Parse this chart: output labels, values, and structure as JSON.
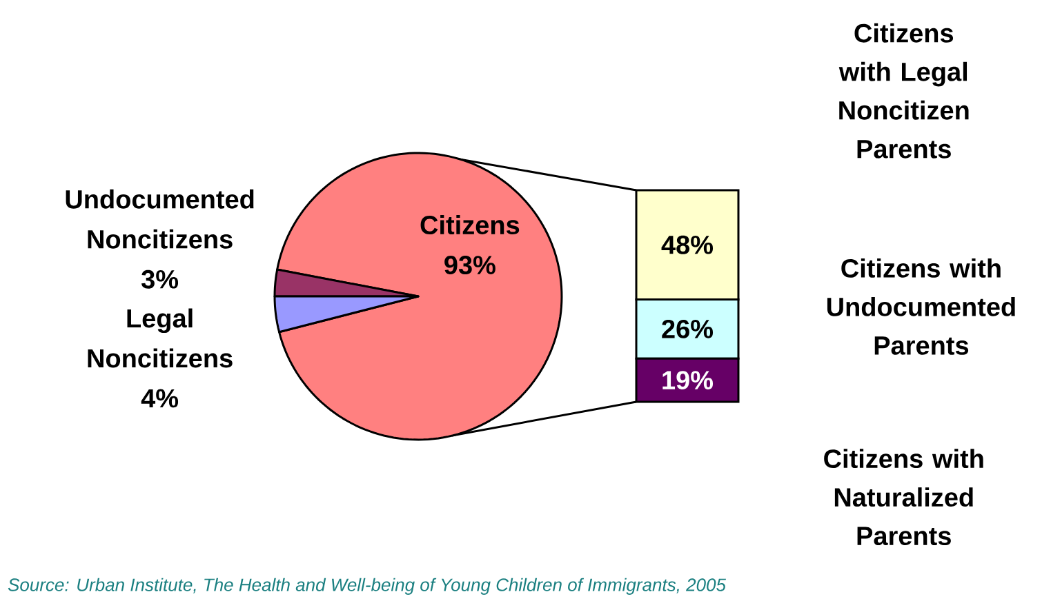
{
  "chart_data": [
    {
      "type": "pie",
      "categories": [
        "Citizens",
        "Undocumented Noncitizens",
        "Legal Noncitizens"
      ],
      "values": [
        93,
        3,
        4
      ],
      "colors": [
        "#ff8080",
        "#993366",
        "#9999ff"
      ],
      "value_labels": [
        "93%",
        "3%",
        "4%"
      ],
      "annotations": [
        "Source: Urban Institute, The Health and Well-being of Young Children of Immigrants, 2005"
      ]
    },
    {
      "type": "bar",
      "stacked": true,
      "categories": [
        null
      ],
      "series": [
        {
          "name": "Citizens with Naturalized Parents",
          "color": "#660066",
          "values": [
            19
          ],
          "value_labels": [
            "19%"
          ]
        },
        {
          "name": "Citizens with Undocumented Parents",
          "color": "#ccffff",
          "values": [
            26
          ],
          "value_labels": [
            "26%"
          ]
        },
        {
          "name": "Citizens with Legal Noncitizen Parents",
          "color": "#ffffcc",
          "values": [
            48
          ],
          "value_labels": [
            "48%"
          ]
        }
      ]
    }
  ]
}
